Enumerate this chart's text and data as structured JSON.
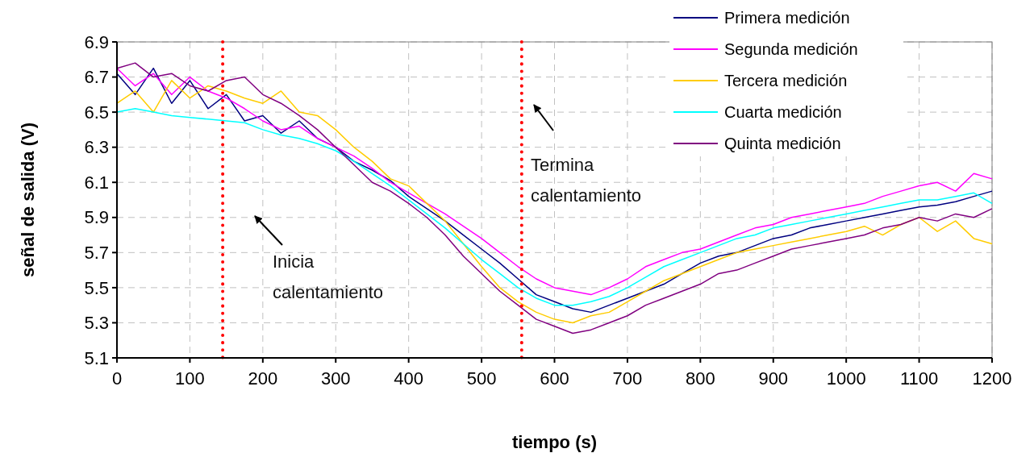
{
  "chart_data": {
    "type": "line",
    "xlabel": "tiempo (s)",
    "ylabel": "señal de salida (V)",
    "x": [
      0,
      25,
      50,
      75,
      100,
      125,
      150,
      175,
      200,
      225,
      250,
      275,
      300,
      325,
      350,
      375,
      400,
      425,
      450,
      475,
      500,
      525,
      550,
      575,
      600,
      625,
      650,
      675,
      700,
      725,
      750,
      775,
      800,
      825,
      850,
      875,
      900,
      925,
      950,
      975,
      1000,
      1025,
      1050,
      1075,
      1100,
      1125,
      1150,
      1175,
      1200
    ],
    "series": [
      {
        "name": "Primera medición",
        "color": "#000080",
        "values": [
          6.72,
          6.6,
          6.75,
          6.55,
          6.68,
          6.52,
          6.6,
          6.45,
          6.48,
          6.38,
          6.45,
          6.35,
          6.3,
          6.22,
          6.17,
          6.11,
          6.02,
          5.95,
          5.88,
          5.8,
          5.72,
          5.64,
          5.55,
          5.46,
          5.42,
          5.38,
          5.36,
          5.4,
          5.44,
          5.48,
          5.52,
          5.58,
          5.64,
          5.68,
          5.7,
          5.74,
          5.78,
          5.8,
          5.84,
          5.86,
          5.88,
          5.9,
          5.92,
          5.94,
          5.96,
          5.97,
          5.99,
          6.02,
          6.05
        ]
      },
      {
        "name": "Segunda medición",
        "color": "#ff00ff",
        "values": [
          6.75,
          6.65,
          6.72,
          6.6,
          6.7,
          6.62,
          6.58,
          6.52,
          6.45,
          6.4,
          6.42,
          6.35,
          6.3,
          6.25,
          6.18,
          6.1,
          6.04,
          5.98,
          5.92,
          5.85,
          5.78,
          5.7,
          5.62,
          5.55,
          5.5,
          5.48,
          5.46,
          5.5,
          5.55,
          5.62,
          5.66,
          5.7,
          5.72,
          5.76,
          5.8,
          5.84,
          5.86,
          5.9,
          5.92,
          5.94,
          5.96,
          5.98,
          6.02,
          6.05,
          6.08,
          6.1,
          6.05,
          6.15,
          6.12
        ]
      },
      {
        "name": "Tercera medición",
        "color": "#ffcc00",
        "values": [
          6.55,
          6.62,
          6.5,
          6.68,
          6.58,
          6.65,
          6.62,
          6.58,
          6.55,
          6.62,
          6.5,
          6.48,
          6.4,
          6.3,
          6.22,
          6.12,
          6.08,
          5.98,
          5.88,
          5.75,
          5.62,
          5.5,
          5.42,
          5.36,
          5.32,
          5.3,
          5.34,
          5.36,
          5.42,
          5.48,
          5.54,
          5.58,
          5.62,
          5.66,
          5.7,
          5.72,
          5.74,
          5.76,
          5.78,
          5.8,
          5.82,
          5.85,
          5.8,
          5.86,
          5.9,
          5.82,
          5.88,
          5.78,
          5.75
        ]
      },
      {
        "name": "Cuarta medición",
        "color": "#00ffff",
        "values": [
          6.5,
          6.52,
          6.5,
          6.48,
          6.47,
          6.46,
          6.45,
          6.44,
          6.4,
          6.37,
          6.35,
          6.32,
          6.28,
          6.22,
          6.15,
          6.08,
          6.0,
          5.92,
          5.84,
          5.75,
          5.66,
          5.58,
          5.5,
          5.44,
          5.4,
          5.4,
          5.42,
          5.45,
          5.5,
          5.56,
          5.62,
          5.66,
          5.7,
          5.74,
          5.78,
          5.8,
          5.84,
          5.86,
          5.88,
          5.9,
          5.92,
          5.94,
          5.96,
          5.98,
          6.0,
          6.0,
          6.02,
          6.04,
          5.98
        ]
      },
      {
        "name": "Quinta medición",
        "color": "#800080",
        "values": [
          6.75,
          6.78,
          6.7,
          6.72,
          6.65,
          6.62,
          6.68,
          6.7,
          6.6,
          6.55,
          6.48,
          6.4,
          6.3,
          6.2,
          6.1,
          6.05,
          5.98,
          5.9,
          5.8,
          5.68,
          5.58,
          5.48,
          5.4,
          5.32,
          5.28,
          5.24,
          5.26,
          5.3,
          5.34,
          5.4,
          5.44,
          5.48,
          5.52,
          5.58,
          5.6,
          5.64,
          5.68,
          5.72,
          5.74,
          5.76,
          5.78,
          5.8,
          5.84,
          5.86,
          5.9,
          5.88,
          5.92,
          5.9,
          5.95
        ]
      }
    ],
    "xlim": [
      0,
      1200
    ],
    "xticks": [
      0,
      100,
      200,
      300,
      400,
      500,
      600,
      700,
      800,
      900,
      1000,
      1100,
      1200
    ],
    "ylim": [
      5.1,
      6.9
    ],
    "yticks": [
      5.1,
      5.3,
      5.5,
      5.7,
      5.9,
      6.1,
      6.3,
      6.5,
      6.7,
      6.9
    ],
    "grid": true,
    "legend": "top right",
    "line_style": "solid",
    "ref_lines": [
      {
        "axis": "x",
        "value": 145,
        "color": "#ff0000",
        "line_style": "dotted"
      },
      {
        "axis": "x",
        "value": 555,
        "color": "#ff0000",
        "line_style": "dotted"
      }
    ],
    "annotations": [
      "Inicia calentamiento",
      "Termina calentamiento"
    ]
  }
}
